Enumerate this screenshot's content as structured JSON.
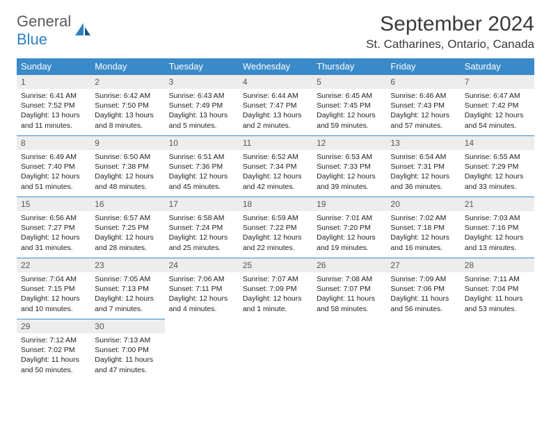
{
  "logo": {
    "text1": "General",
    "text2": "Blue"
  },
  "title": "September 2024",
  "location": "St. Catharines, Ontario, Canada",
  "colors": {
    "header_bg": "#3a8ac9",
    "header_text": "#ffffff",
    "daynum_bg": "#ededed",
    "border": "#3a8ac9",
    "logo_gray": "#5a5a5a",
    "logo_blue": "#2d7fc1",
    "title_color": "#3a3a3a"
  },
  "weekdays": [
    "Sunday",
    "Monday",
    "Tuesday",
    "Wednesday",
    "Thursday",
    "Friday",
    "Saturday"
  ],
  "days": [
    {
      "n": "1",
      "sr": "6:41 AM",
      "ss": "7:52 PM",
      "dl": "13 hours and 11 minutes."
    },
    {
      "n": "2",
      "sr": "6:42 AM",
      "ss": "7:50 PM",
      "dl": "13 hours and 8 minutes."
    },
    {
      "n": "3",
      "sr": "6:43 AM",
      "ss": "7:49 PM",
      "dl": "13 hours and 5 minutes."
    },
    {
      "n": "4",
      "sr": "6:44 AM",
      "ss": "7:47 PM",
      "dl": "13 hours and 2 minutes."
    },
    {
      "n": "5",
      "sr": "6:45 AM",
      "ss": "7:45 PM",
      "dl": "12 hours and 59 minutes."
    },
    {
      "n": "6",
      "sr": "6:46 AM",
      "ss": "7:43 PM",
      "dl": "12 hours and 57 minutes."
    },
    {
      "n": "7",
      "sr": "6:47 AM",
      "ss": "7:42 PM",
      "dl": "12 hours and 54 minutes."
    },
    {
      "n": "8",
      "sr": "6:49 AM",
      "ss": "7:40 PM",
      "dl": "12 hours and 51 minutes."
    },
    {
      "n": "9",
      "sr": "6:50 AM",
      "ss": "7:38 PM",
      "dl": "12 hours and 48 minutes."
    },
    {
      "n": "10",
      "sr": "6:51 AM",
      "ss": "7:36 PM",
      "dl": "12 hours and 45 minutes."
    },
    {
      "n": "11",
      "sr": "6:52 AM",
      "ss": "7:34 PM",
      "dl": "12 hours and 42 minutes."
    },
    {
      "n": "12",
      "sr": "6:53 AM",
      "ss": "7:33 PM",
      "dl": "12 hours and 39 minutes."
    },
    {
      "n": "13",
      "sr": "6:54 AM",
      "ss": "7:31 PM",
      "dl": "12 hours and 36 minutes."
    },
    {
      "n": "14",
      "sr": "6:55 AM",
      "ss": "7:29 PM",
      "dl": "12 hours and 33 minutes."
    },
    {
      "n": "15",
      "sr": "6:56 AM",
      "ss": "7:27 PM",
      "dl": "12 hours and 31 minutes."
    },
    {
      "n": "16",
      "sr": "6:57 AM",
      "ss": "7:25 PM",
      "dl": "12 hours and 28 minutes."
    },
    {
      "n": "17",
      "sr": "6:58 AM",
      "ss": "7:24 PM",
      "dl": "12 hours and 25 minutes."
    },
    {
      "n": "18",
      "sr": "6:59 AM",
      "ss": "7:22 PM",
      "dl": "12 hours and 22 minutes."
    },
    {
      "n": "19",
      "sr": "7:01 AM",
      "ss": "7:20 PM",
      "dl": "12 hours and 19 minutes."
    },
    {
      "n": "20",
      "sr": "7:02 AM",
      "ss": "7:18 PM",
      "dl": "12 hours and 16 minutes."
    },
    {
      "n": "21",
      "sr": "7:03 AM",
      "ss": "7:16 PM",
      "dl": "12 hours and 13 minutes."
    },
    {
      "n": "22",
      "sr": "7:04 AM",
      "ss": "7:15 PM",
      "dl": "12 hours and 10 minutes."
    },
    {
      "n": "23",
      "sr": "7:05 AM",
      "ss": "7:13 PM",
      "dl": "12 hours and 7 minutes."
    },
    {
      "n": "24",
      "sr": "7:06 AM",
      "ss": "7:11 PM",
      "dl": "12 hours and 4 minutes."
    },
    {
      "n": "25",
      "sr": "7:07 AM",
      "ss": "7:09 PM",
      "dl": "12 hours and 1 minute."
    },
    {
      "n": "26",
      "sr": "7:08 AM",
      "ss": "7:07 PM",
      "dl": "11 hours and 58 minutes."
    },
    {
      "n": "27",
      "sr": "7:09 AM",
      "ss": "7:06 PM",
      "dl": "11 hours and 56 minutes."
    },
    {
      "n": "28",
      "sr": "7:11 AM",
      "ss": "7:04 PM",
      "dl": "11 hours and 53 minutes."
    },
    {
      "n": "29",
      "sr": "7:12 AM",
      "ss": "7:02 PM",
      "dl": "11 hours and 50 minutes."
    },
    {
      "n": "30",
      "sr": "7:13 AM",
      "ss": "7:00 PM",
      "dl": "11 hours and 47 minutes."
    }
  ],
  "labels": {
    "sunrise": "Sunrise:",
    "sunset": "Sunset:",
    "daylight": "Daylight:"
  }
}
